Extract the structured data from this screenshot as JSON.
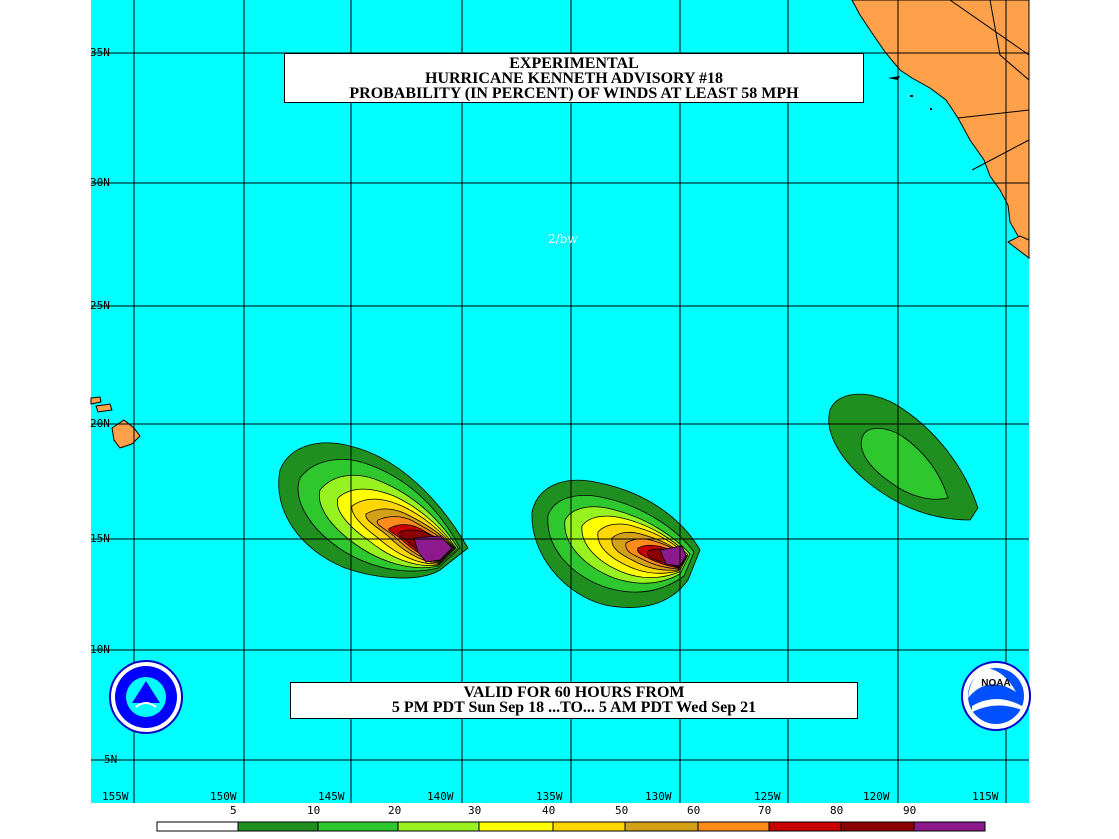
{
  "title": {
    "line1": "EXPERIMENTAL",
    "line2": "HURRICANE KENNETH ADVISORY #18",
    "line3": "PROBABILITY (IN PERCENT) OF WINDS AT LEAST 58 MPH"
  },
  "valid": {
    "line1": "VALID FOR 60 HOURS FROM",
    "line2": "5 PM PDT Sun Sep 18 ...TO... 5 AM PDT Wed Sep 21"
  },
  "credit": "2/bw",
  "lat_labels": [
    "35N",
    "30N",
    "25N",
    "20N",
    "15N",
    "10N",
    "5N"
  ],
  "lon_labels": [
    "155W",
    "150W",
    "145W",
    "140W",
    "135W",
    "130W",
    "125W",
    "120W",
    "115W"
  ],
  "legend": {
    "values": [
      "5",
      "10",
      "20",
      "30",
      "40",
      "50",
      "60",
      "70",
      "80",
      "90"
    ],
    "colors": [
      "#ffffff",
      "#1f8f1f",
      "#2ec82e",
      "#97f21f",
      "#ffff00",
      "#ffd700",
      "#d4a017",
      "#ff8c1a",
      "#c80000",
      "#8c0000",
      "#8c1a8c"
    ]
  },
  "colors": {
    "ocean": "#00ffff",
    "land": "#ffa04a",
    "grid": "#000000"
  },
  "icons": [
    "nws-logo-icon",
    "noaa-logo-icon"
  ]
}
